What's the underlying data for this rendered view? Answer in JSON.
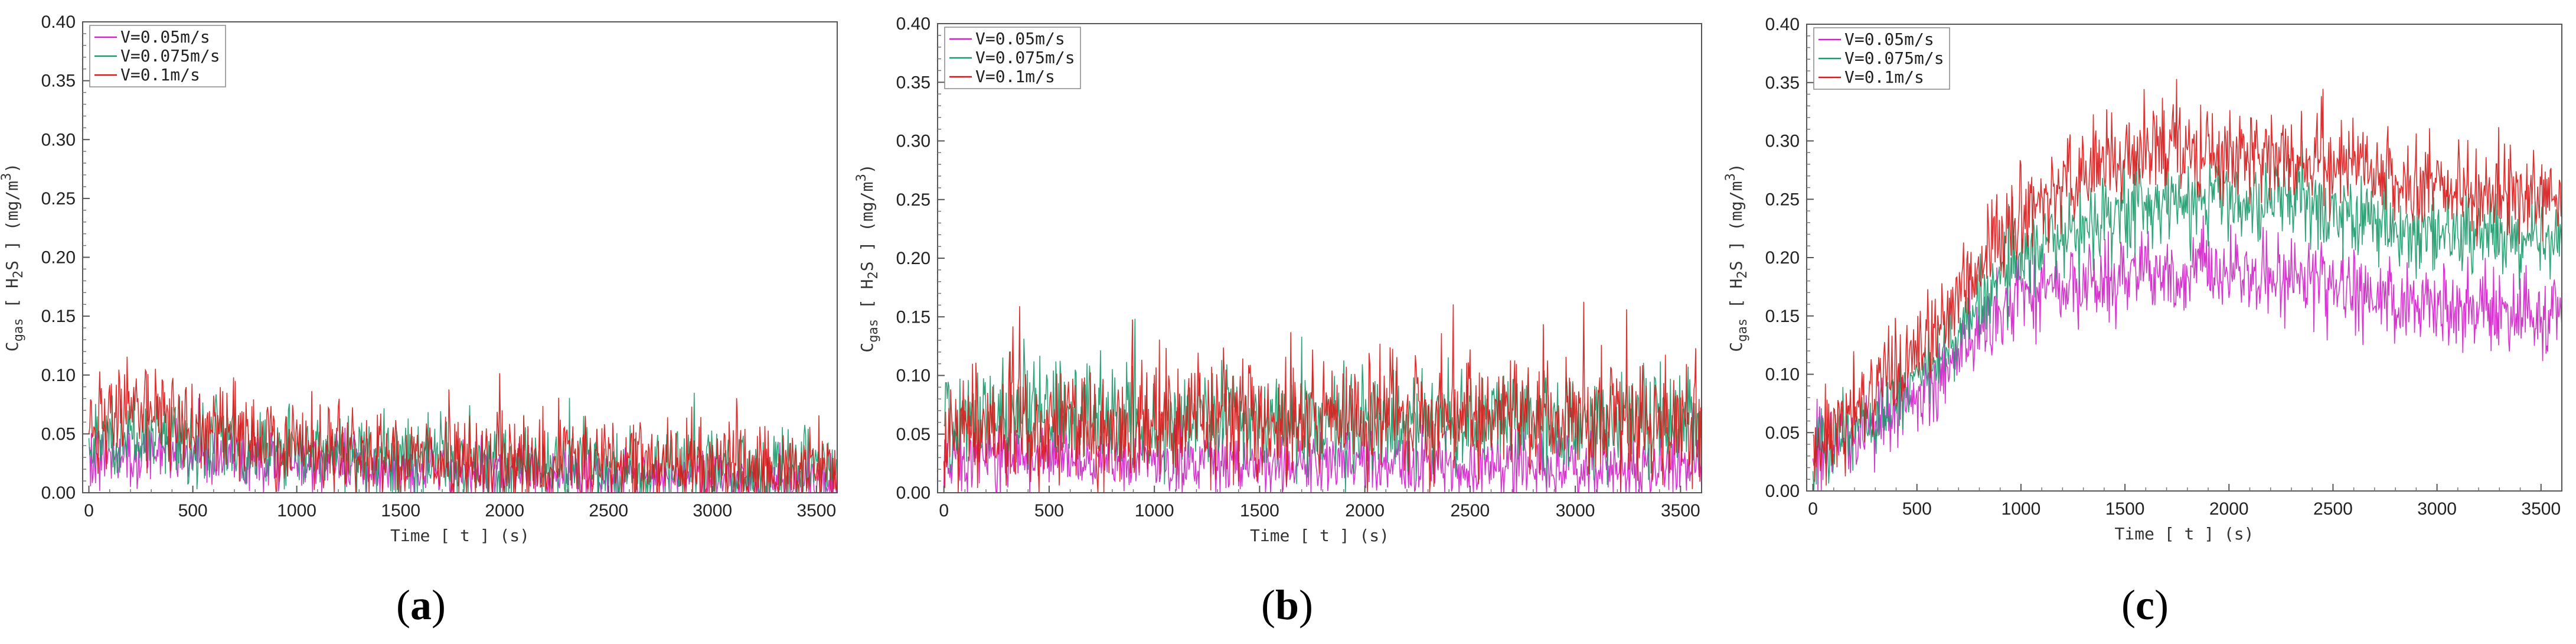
{
  "chart_data": [
    {
      "type": "line",
      "caption": "(a)",
      "caption_letter": "a",
      "xlabel": "Time [ t ] (s)",
      "ylabel_main": "C",
      "ylabel_sub": "gas",
      "ylabel_species": " [ H",
      "ylabel_species_sub": "2",
      "ylabel_species_end": "S ]",
      "ylabel_unit_open": " (mg/m",
      "ylabel_unit_sup": "3",
      "ylabel_unit_close": ")",
      "xlim": [
        -30,
        3600
      ],
      "ylim": [
        0,
        0.4
      ],
      "x_ticks": [
        "0",
        "500",
        "1000",
        "1500",
        "2000",
        "2500",
        "3000",
        "3500"
      ],
      "x_tick_values": [
        0,
        500,
        1000,
        1500,
        2000,
        2500,
        3000,
        3500
      ],
      "y_ticks": [
        "0.00",
        "0.05",
        "0.10",
        "0.15",
        "0.20",
        "0.25",
        "0.30",
        "0.35",
        "0.40"
      ],
      "y_tick_values": [
        0,
        0.05,
        0.1,
        0.15,
        0.2,
        0.25,
        0.3,
        0.35,
        0.4
      ],
      "legend_position": "top-left",
      "series": [
        {
          "name": "V=0.05m/s",
          "color": "#d020c8",
          "profile": [
            [
              0,
              0.03
            ],
            [
              300,
              0.035
            ],
            [
              1000,
              0.025
            ],
            [
              2000,
              0.015
            ],
            [
              3600,
              0.012
            ]
          ],
          "noise": 0.022
        },
        {
          "name": "V=0.075m/s",
          "color": "#1a9a6a",
          "profile": [
            [
              0,
              0.045
            ],
            [
              300,
              0.05
            ],
            [
              1000,
              0.035
            ],
            [
              2000,
              0.025
            ],
            [
              3600,
              0.022
            ]
          ],
          "noise": 0.03
        },
        {
          "name": "V=0.1m/s",
          "color": "#d81818",
          "profile": [
            [
              0,
              0.06
            ],
            [
              300,
              0.065
            ],
            [
              1000,
              0.04
            ],
            [
              2000,
              0.025
            ],
            [
              3600,
              0.02
            ]
          ],
          "noise": 0.035
        }
      ]
    },
    {
      "type": "line",
      "caption": "(b)",
      "caption_letter": "b",
      "xlabel": "Time [ t ] (s)",
      "ylabel_main": "C",
      "ylabel_sub": "gas",
      "ylabel_species": " [ H",
      "ylabel_species_sub": "2",
      "ylabel_species_end": "S ]",
      "ylabel_unit_open": " (mg/m",
      "ylabel_unit_sup": "3",
      "ylabel_unit_close": ")",
      "xlim": [
        -30,
        3600
      ],
      "ylim": [
        0,
        0.4
      ],
      "x_ticks": [
        "0",
        "500",
        "1000",
        "1500",
        "2000",
        "2500",
        "3000",
        "3500"
      ],
      "x_tick_values": [
        0,
        500,
        1000,
        1500,
        2000,
        2500,
        3000,
        3500
      ],
      "y_ticks": [
        "0.00",
        "0.05",
        "0.10",
        "0.15",
        "0.20",
        "0.25",
        "0.30",
        "0.35",
        "0.40"
      ],
      "y_tick_values": [
        0,
        0.05,
        0.1,
        0.15,
        0.2,
        0.25,
        0.3,
        0.35,
        0.4
      ],
      "legend_position": "top-left",
      "series": [
        {
          "name": "V=0.05m/s",
          "color": "#d020c8",
          "profile": [
            [
              0,
              0.03
            ],
            [
              1000,
              0.025
            ],
            [
              2000,
              0.022
            ],
            [
              3600,
              0.02
            ]
          ],
          "noise": 0.025
        },
        {
          "name": "V=0.075m/s",
          "color": "#1a9a6a",
          "profile": [
            [
              0,
              0.065
            ],
            [
              1000,
              0.065
            ],
            [
              2000,
              0.06
            ],
            [
              3600,
              0.06
            ]
          ],
          "noise": 0.04
        },
        {
          "name": "V=0.1m/s",
          "color": "#d81818",
          "profile": [
            [
              0,
              0.05
            ],
            [
              1000,
              0.06
            ],
            [
              2000,
              0.065
            ],
            [
              3600,
              0.06
            ]
          ],
          "noise": 0.045
        }
      ]
    },
    {
      "type": "line",
      "caption": "(c)",
      "caption_letter": "c",
      "xlabel": "Time [ t ] (s)",
      "ylabel_main": "C",
      "ylabel_sub": "gas",
      "ylabel_species": " [ H",
      "ylabel_species_sub": "2",
      "ylabel_species_end": "S ]",
      "ylabel_unit_open": " (mg/m",
      "ylabel_unit_sup": "3",
      "ylabel_unit_close": ")",
      "xlim": [
        -30,
        3600
      ],
      "ylim": [
        0,
        0.4
      ],
      "x_ticks": [
        "0",
        "500",
        "1000",
        "1500",
        "2000",
        "2500",
        "3000",
        "3500"
      ],
      "x_tick_values": [
        0,
        500,
        1000,
        1500,
        2000,
        2500,
        3000,
        3500
      ],
      "y_ticks": [
        "0.00",
        "0.05",
        "0.10",
        "0.15",
        "0.20",
        "0.25",
        "0.30",
        "0.35",
        "0.40"
      ],
      "y_tick_values": [
        0,
        0.05,
        0.1,
        0.15,
        0.2,
        0.25,
        0.3,
        0.35,
        0.4
      ],
      "legend_position": "top-left",
      "series": [
        {
          "name": "V=0.05m/s",
          "color": "#d020c8",
          "profile": [
            [
              0,
              0.03
            ],
            [
              500,
              0.08
            ],
            [
              1000,
              0.17
            ],
            [
              1500,
              0.18
            ],
            [
              2000,
              0.19
            ],
            [
              2500,
              0.175
            ],
            [
              3000,
              0.16
            ],
            [
              3600,
              0.15
            ]
          ],
          "noise": 0.03
        },
        {
          "name": "V=0.075m/s",
          "color": "#1a9a6a",
          "profile": [
            [
              0,
              0.03
            ],
            [
              500,
              0.09
            ],
            [
              1000,
              0.2
            ],
            [
              1500,
              0.24
            ],
            [
              2000,
              0.25
            ],
            [
              2500,
              0.24
            ],
            [
              3000,
              0.22
            ],
            [
              3600,
              0.21
            ]
          ],
          "noise": 0.032
        },
        {
          "name": "V=0.1m/s",
          "color": "#d81818",
          "profile": [
            [
              0,
              0.035
            ],
            [
              500,
              0.12
            ],
            [
              1000,
              0.24
            ],
            [
              1500,
              0.29
            ],
            [
              2000,
              0.29
            ],
            [
              2500,
              0.28
            ],
            [
              3000,
              0.26
            ],
            [
              3600,
              0.25
            ]
          ],
          "noise": 0.034
        }
      ]
    }
  ]
}
